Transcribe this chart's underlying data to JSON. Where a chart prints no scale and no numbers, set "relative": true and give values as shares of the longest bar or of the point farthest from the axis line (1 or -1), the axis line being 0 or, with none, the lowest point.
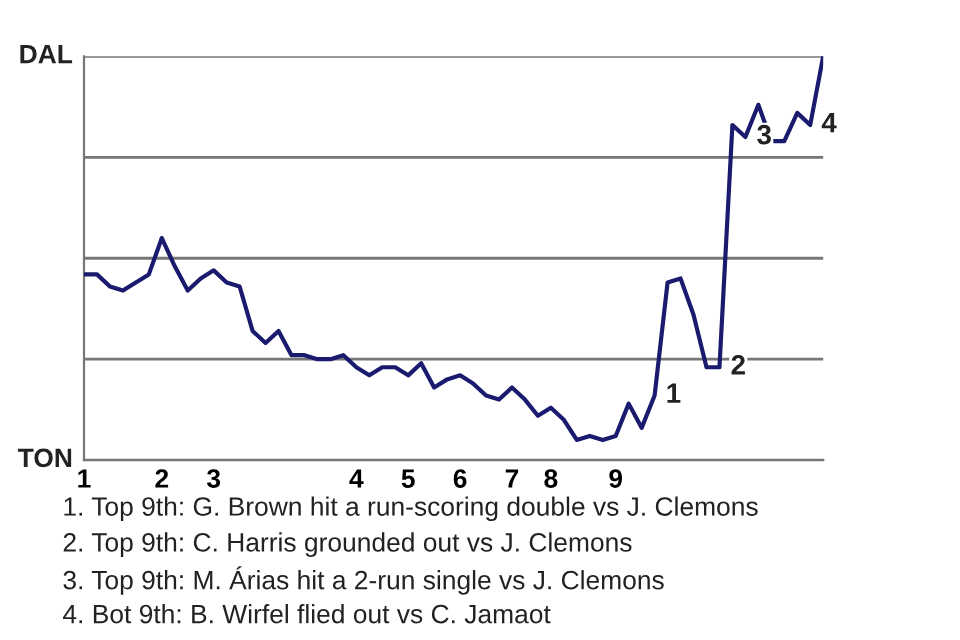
{
  "chart_data": {
    "type": "line",
    "relative": true,
    "categories": [
      "1",
      null,
      null,
      null,
      null,
      null,
      "2",
      null,
      null,
      null,
      "3",
      null,
      null,
      null,
      null,
      null,
      null,
      null,
      null,
      null,
      null,
      "4",
      null,
      null,
      null,
      "5",
      null,
      null,
      null,
      "6",
      null,
      null,
      null,
      "7",
      null,
      null,
      "8",
      null,
      null,
      null,
      null,
      "9",
      null,
      null,
      null,
      null,
      null,
      null,
      null,
      null,
      null,
      null,
      null,
      null,
      null,
      null,
      null,
      null
    ],
    "series": [
      {
        "color": "#1a1a6e",
        "values": [
          0.46,
          0.46,
          0.43,
          0.42,
          0.44,
          0.46,
          0.55,
          0.48,
          0.42,
          0.45,
          0.47,
          0.44,
          0.43,
          0.32,
          0.29,
          0.32,
          0.26,
          0.26,
          0.25,
          0.25,
          0.26,
          0.23,
          0.21,
          0.23,
          0.23,
          0.21,
          0.24,
          0.18,
          0.2,
          0.21,
          0.19,
          0.16,
          0.15,
          0.18,
          0.15,
          0.11,
          0.13,
          0.1,
          0.05,
          0.06,
          0.05,
          0.06,
          0.14,
          0.08,
          0.16,
          0.44,
          0.45,
          0.36,
          0.23,
          0.23,
          0.83,
          0.8,
          0.88,
          0.79,
          0.79,
          0.86,
          0.83,
          1
        ]
      }
    ],
    "grid": "y",
    "annotations": [
      {
        "text": "1",
        "y": 0.16
      },
      {
        "text": "2",
        "y": 0.23
      },
      {
        "text": "3",
        "y": 0.8
      },
      {
        "text": "4",
        "y": 0.83
      },
      "DAL",
      "TON",
      "1. Top 9th: G. Brown hit a run-scoring double vs J. Clemons",
      "2. Top 9th: C. Harris grounded out vs J. Clemons",
      "3. Top 9th: M. Árias hit a 2-run single vs J. Clemons",
      "4. Bot 9th: B. Wirfel flied out vs C. Jamaot"
    ]
  }
}
